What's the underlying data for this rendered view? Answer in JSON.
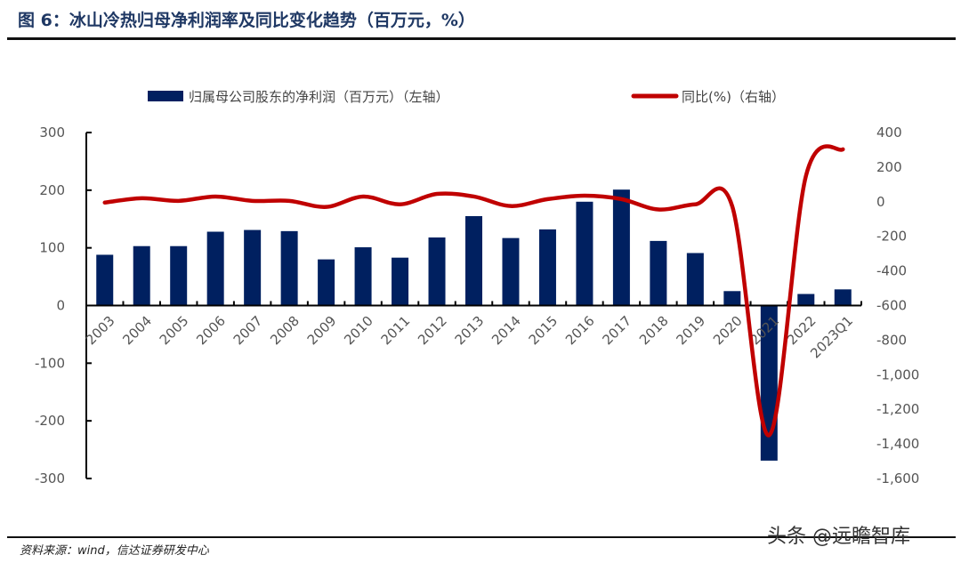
{
  "title": "图 6：冰山冷热归母净利润率及同比变化趋势（百万元，%）",
  "source": "资料来源：wind，信达证券研发中心",
  "watermark": "头条 @远瞻智库",
  "chart_data": {
    "type": "bar+line",
    "categories": [
      "2003",
      "2004",
      "2005",
      "2006",
      "2007",
      "2008",
      "2009",
      "2010",
      "2011",
      "2012",
      "2013",
      "2014",
      "2015",
      "2016",
      "2017",
      "2018",
      "2019",
      "2020",
      "2021",
      "2022",
      "2023Q1"
    ],
    "series": [
      {
        "name": "归属母公司股东的净利润（百万元）（左轴）",
        "type": "bar",
        "axis": "left",
        "color": "#002060",
        "values": [
          88,
          103,
          103,
          128,
          131,
          129,
          80,
          101,
          83,
          118,
          155,
          117,
          132,
          180,
          201,
          112,
          91,
          25,
          -269,
          20,
          28
        ]
      },
      {
        "name": "同比(%)（右轴）",
        "type": "line",
        "axis": "right",
        "color": "#c00000",
        "values": [
          -5,
          20,
          5,
          30,
          5,
          5,
          -30,
          30,
          -15,
          45,
          30,
          -25,
          15,
          35,
          15,
          -45,
          -15,
          -25,
          -1350,
          150,
          303
        ]
      }
    ],
    "left_axis": {
      "range": [
        -300,
        300
      ],
      "ticks": [
        "300",
        "200",
        "100",
        "0",
        "-100",
        "-200",
        "-300"
      ]
    },
    "right_axis": {
      "range": [
        -1600,
        400
      ],
      "ticks": [
        "400",
        "200",
        "0",
        "-200",
        "-400",
        "-600",
        "-800",
        "-1,000",
        "-1,200",
        "-1,400",
        "-1,600"
      ]
    },
    "legend": "top"
  }
}
